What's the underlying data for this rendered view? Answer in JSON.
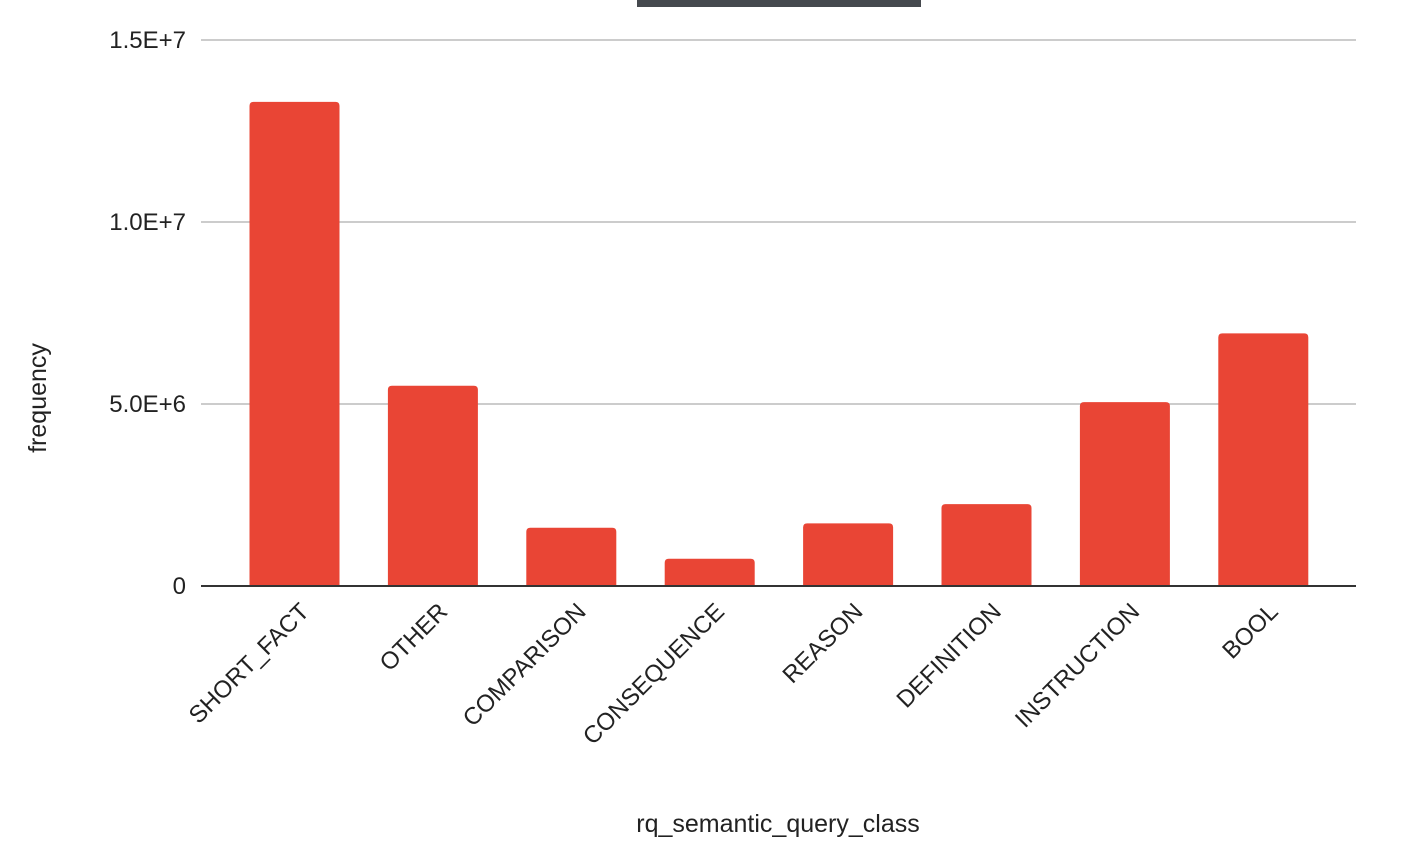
{
  "chart_data": {
    "type": "bar",
    "title": "",
    "xlabel": "rq_semantic_query_class",
    "ylabel": "frequency",
    "categories": [
      "SHORT_FACT",
      "OTHER",
      "COMPARISON",
      "CONSEQUENCE",
      "REASON",
      "DEFINITION",
      "INSTRUCTION",
      "BOOL"
    ],
    "values": [
      13300000,
      5500000,
      1600000,
      750000,
      1720000,
      2250000,
      5050000,
      6940000
    ],
    "ylim": [
      0,
      15000000
    ],
    "yticks": [
      0,
      5000000,
      10000000,
      15000000
    ],
    "ytick_labels": [
      "0",
      "5.0E+6",
      "1.0E+7",
      "1.5E+7"
    ],
    "grid": true,
    "legend": "none",
    "colors": {
      "bar": "#E94535",
      "grid": "#CCCCCC",
      "baseline": "#333333",
      "title_bar": "#45494E"
    }
  }
}
